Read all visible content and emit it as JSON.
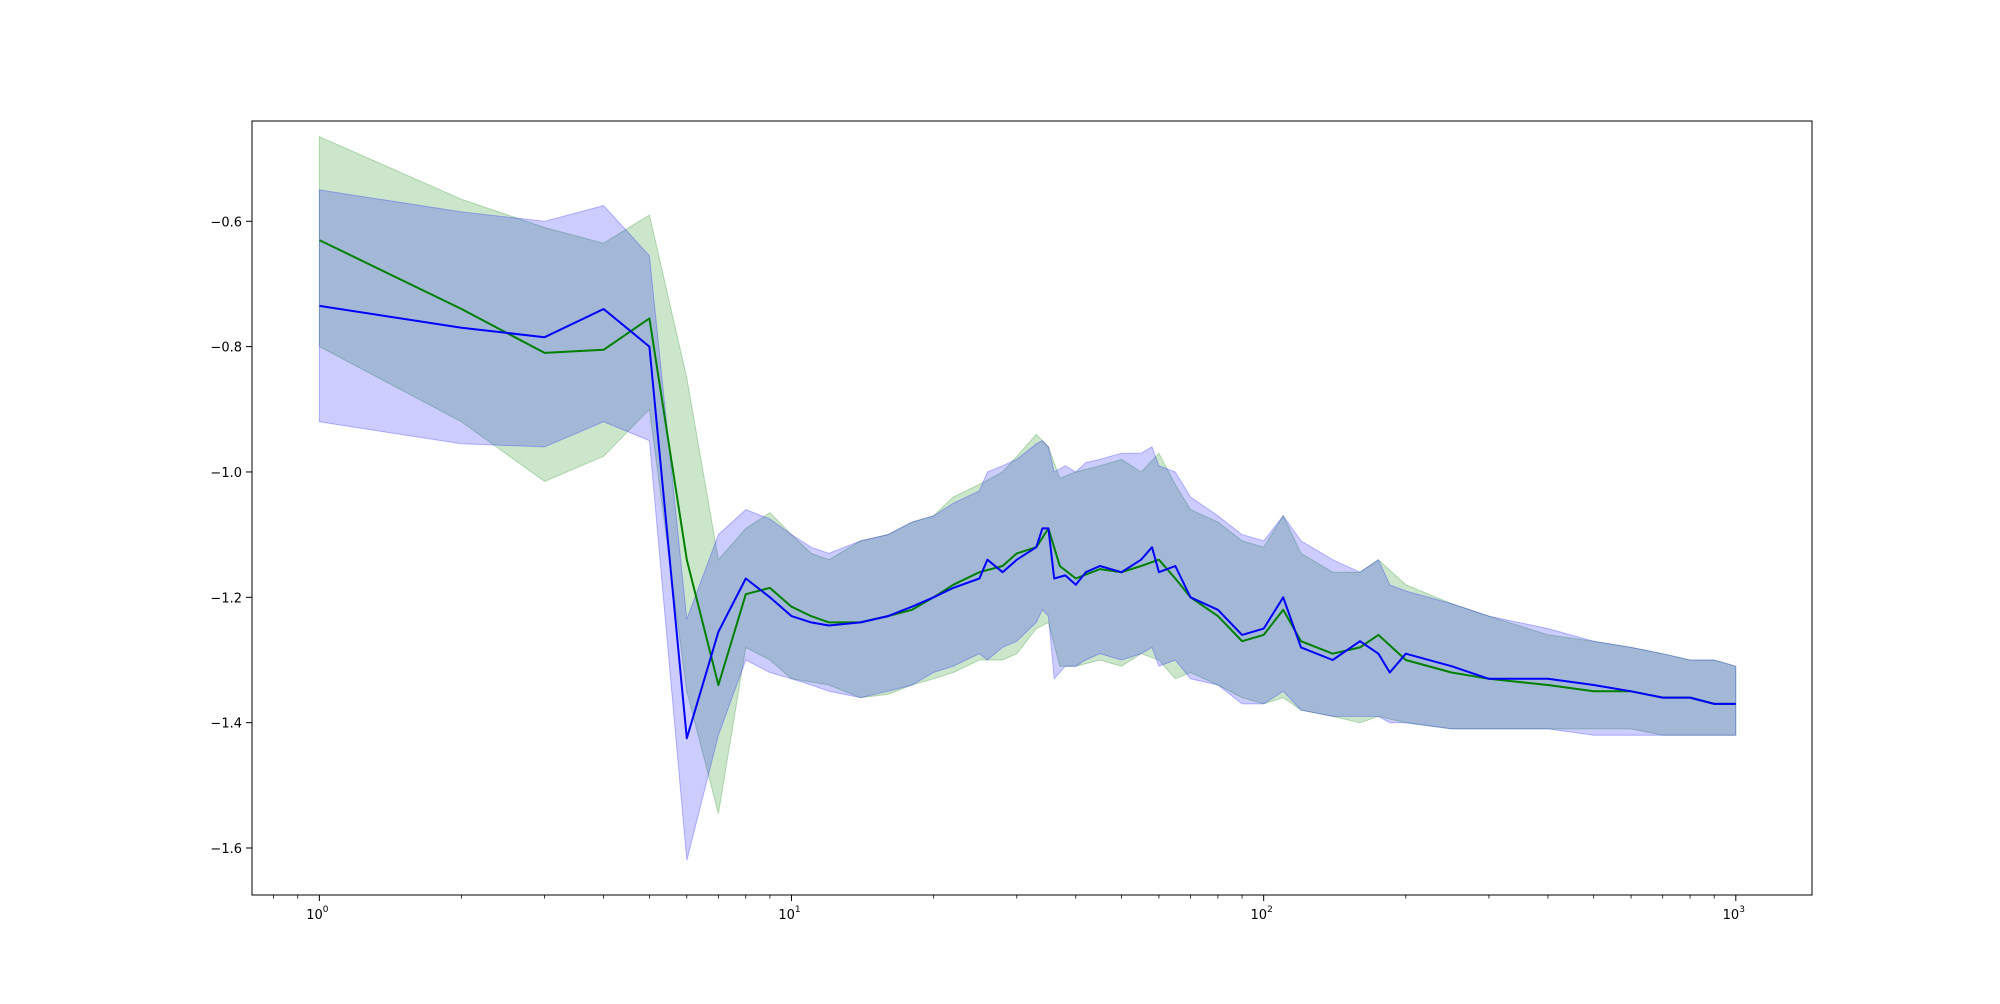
{
  "chart_data": {
    "type": "line",
    "title": "",
    "xlabel": "",
    "ylabel": "",
    "xscale": "log",
    "xlim": [
      0.72,
      1450
    ],
    "ylim": [
      -1.675,
      -0.44
    ],
    "grid": false,
    "legend": "none",
    "x_ticks": [
      {
        "value": 1,
        "base": "10",
        "exp": "0"
      },
      {
        "value": 10,
        "base": "10",
        "exp": "1"
      },
      {
        "value": 100,
        "base": "10",
        "exp": "2"
      },
      {
        "value": 1000,
        "base": "10",
        "exp": "3"
      }
    ],
    "y_ticks": [
      {
        "value": -0.6,
        "label": "−0.6"
      },
      {
        "value": -0.8,
        "label": "−0.8"
      },
      {
        "value": -1.0,
        "label": "−1.0"
      },
      {
        "value": -1.2,
        "label": "−1.2"
      },
      {
        "value": -1.4,
        "label": "−1.4"
      },
      {
        "value": -1.6,
        "label": "−1.6"
      }
    ],
    "series": [
      {
        "color": "#008000",
        "band_color": "#008000",
        "band_opacity": 0.2,
        "x": [
          1,
          2,
          3,
          4,
          5,
          6,
          7,
          8,
          9,
          10,
          11,
          12,
          14,
          16,
          18,
          20,
          22,
          25,
          28,
          30,
          33,
          35,
          37,
          40,
          45,
          50,
          55,
          60,
          65,
          70,
          80,
          90,
          100,
          110,
          120,
          140,
          160,
          175,
          200,
          250,
          300,
          400,
          500,
          600,
          700,
          800,
          900,
          1000
        ],
        "y": [
          -0.63,
          -0.74,
          -0.81,
          -0.805,
          -0.755,
          -1.14,
          -1.34,
          -1.195,
          -1.185,
          -1.215,
          -1.23,
          -1.24,
          -1.24,
          -1.23,
          -1.22,
          -1.2,
          -1.18,
          -1.16,
          -1.15,
          -1.13,
          -1.12,
          -1.09,
          -1.15,
          -1.17,
          -1.155,
          -1.16,
          -1.15,
          -1.14,
          -1.17,
          -1.2,
          -1.23,
          -1.27,
          -1.26,
          -1.22,
          -1.27,
          -1.29,
          -1.28,
          -1.26,
          -1.3,
          -1.32,
          -1.33,
          -1.34,
          -1.35,
          -1.35,
          -1.36,
          -1.36,
          -1.37,
          -1.37
        ],
        "lower": [
          -0.8,
          -0.92,
          -1.015,
          -0.975,
          -0.9,
          -1.35,
          -1.545,
          -1.28,
          -1.3,
          -1.33,
          -1.335,
          -1.34,
          -1.36,
          -1.355,
          -1.34,
          -1.33,
          -1.32,
          -1.3,
          -1.3,
          -1.29,
          -1.25,
          -1.24,
          -1.31,
          -1.31,
          -1.3,
          -1.31,
          -1.29,
          -1.3,
          -1.33,
          -1.32,
          -1.34,
          -1.36,
          -1.37,
          -1.36,
          -1.38,
          -1.39,
          -1.4,
          -1.39,
          -1.4,
          -1.41,
          -1.41,
          -1.41,
          -1.41,
          -1.41,
          -1.42,
          -1.42,
          -1.42,
          -1.42
        ],
        "upper": [
          -0.465,
          -0.565,
          -0.61,
          -0.635,
          -0.59,
          -0.85,
          -1.14,
          -1.09,
          -1.065,
          -1.1,
          -1.13,
          -1.14,
          -1.11,
          -1.1,
          -1.08,
          -1.07,
          -1.04,
          -1.02,
          -1.0,
          -0.975,
          -0.94,
          -0.96,
          -1.01,
          -1.0,
          -0.99,
          -0.98,
          -1.0,
          -0.97,
          -1.02,
          -1.06,
          -1.08,
          -1.11,
          -1.12,
          -1.07,
          -1.13,
          -1.16,
          -1.16,
          -1.14,
          -1.18,
          -1.21,
          -1.23,
          -1.26,
          -1.27,
          -1.28,
          -1.29,
          -1.3,
          -1.3,
          -1.31
        ]
      },
      {
        "color": "#0000ff",
        "band_color": "#0000ff",
        "band_opacity": 0.2,
        "x": [
          1,
          2,
          3,
          4,
          5,
          6,
          7,
          8,
          9,
          10,
          11,
          12,
          14,
          16,
          18,
          20,
          22,
          25,
          26,
          28,
          30,
          33,
          34,
          35,
          36,
          38,
          40,
          42,
          45,
          50,
          55,
          58,
          60,
          65,
          70,
          80,
          90,
          100,
          110,
          120,
          140,
          160,
          175,
          185,
          200,
          250,
          300,
          400,
          500,
          600,
          700,
          800,
          900,
          1000
        ],
        "y": [
          -0.735,
          -0.77,
          -0.785,
          -0.74,
          -0.8,
          -1.425,
          -1.255,
          -1.17,
          -1.2,
          -1.23,
          -1.24,
          -1.245,
          -1.24,
          -1.23,
          -1.215,
          -1.2,
          -1.185,
          -1.17,
          -1.14,
          -1.16,
          -1.14,
          -1.12,
          -1.09,
          -1.09,
          -1.17,
          -1.165,
          -1.18,
          -1.16,
          -1.15,
          -1.16,
          -1.14,
          -1.12,
          -1.16,
          -1.15,
          -1.2,
          -1.22,
          -1.26,
          -1.25,
          -1.2,
          -1.28,
          -1.3,
          -1.27,
          -1.29,
          -1.32,
          -1.29,
          -1.31,
          -1.33,
          -1.33,
          -1.34,
          -1.35,
          -1.36,
          -1.36,
          -1.37,
          -1.37
        ],
        "lower": [
          -0.92,
          -0.955,
          -0.96,
          -0.92,
          -0.95,
          -1.62,
          -1.42,
          -1.3,
          -1.32,
          -1.33,
          -1.34,
          -1.35,
          -1.36,
          -1.35,
          -1.34,
          -1.32,
          -1.31,
          -1.29,
          -1.3,
          -1.28,
          -1.27,
          -1.24,
          -1.22,
          -1.23,
          -1.33,
          -1.31,
          -1.31,
          -1.3,
          -1.29,
          -1.3,
          -1.29,
          -1.28,
          -1.31,
          -1.3,
          -1.33,
          -1.34,
          -1.37,
          -1.37,
          -1.35,
          -1.38,
          -1.39,
          -1.39,
          -1.39,
          -1.4,
          -1.4,
          -1.41,
          -1.41,
          -1.41,
          -1.42,
          -1.42,
          -1.42,
          -1.42,
          -1.42,
          -1.42
        ],
        "upper": [
          -0.55,
          -0.585,
          -0.6,
          -0.575,
          -0.655,
          -1.235,
          -1.1,
          -1.06,
          -1.075,
          -1.1,
          -1.12,
          -1.13,
          -1.11,
          -1.1,
          -1.08,
          -1.07,
          -1.05,
          -1.03,
          -1.0,
          -0.99,
          -0.98,
          -0.955,
          -0.95,
          -0.96,
          -1.0,
          -0.99,
          -1.0,
          -0.985,
          -0.98,
          -0.97,
          -0.97,
          -0.96,
          -0.99,
          -1.0,
          -1.04,
          -1.07,
          -1.1,
          -1.11,
          -1.07,
          -1.11,
          -1.14,
          -1.16,
          -1.14,
          -1.18,
          -1.19,
          -1.21,
          -1.23,
          -1.25,
          -1.27,
          -1.28,
          -1.29,
          -1.3,
          -1.3,
          -1.31
        ]
      }
    ]
  }
}
